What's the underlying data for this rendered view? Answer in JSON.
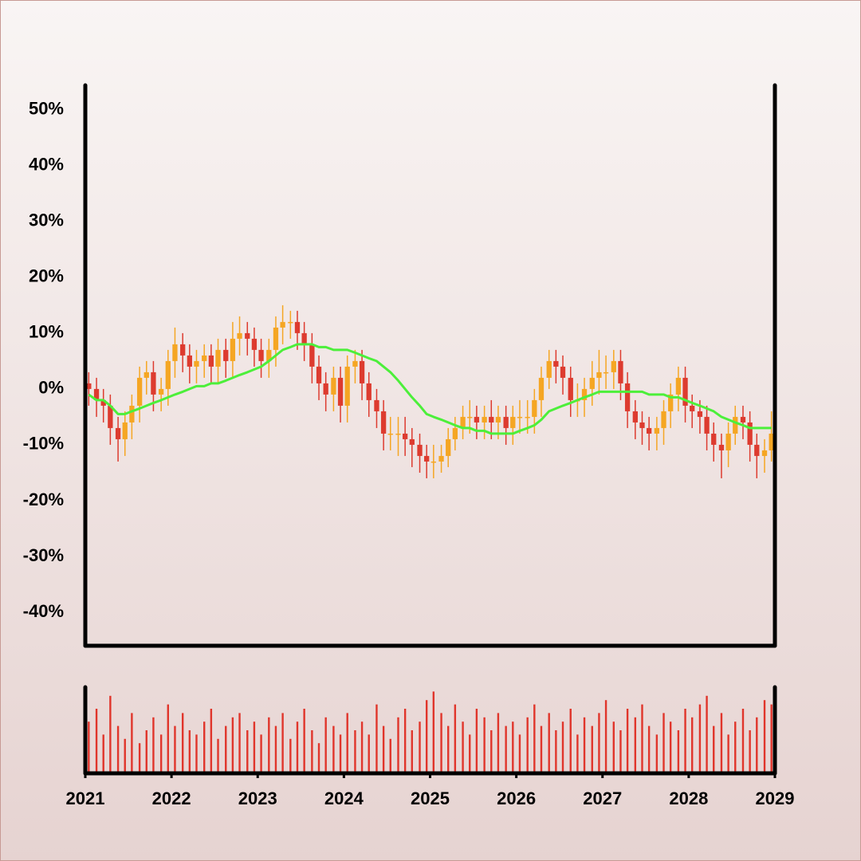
{
  "chart_data": {
    "type": "candlestick",
    "x": [
      2021.04,
      2021.13,
      2021.21,
      2021.29,
      2021.38,
      2021.46,
      2021.54,
      2021.63,
      2021.71,
      2021.79,
      2021.88,
      2021.96,
      2022.04,
      2022.13,
      2022.21,
      2022.29,
      2022.38,
      2022.46,
      2022.54,
      2022.63,
      2022.71,
      2022.79,
      2022.88,
      2022.96,
      2023.04,
      2023.13,
      2023.21,
      2023.29,
      2023.38,
      2023.46,
      2023.54,
      2023.63,
      2023.71,
      2023.79,
      2023.88,
      2023.96,
      2024.04,
      2024.13,
      2024.21,
      2024.29,
      2024.38,
      2024.46,
      2024.54,
      2024.63,
      2024.71,
      2024.79,
      2024.88,
      2024.96,
      2025.04,
      2025.13,
      2025.21,
      2025.29,
      2025.38,
      2025.46,
      2025.54,
      2025.63,
      2025.71,
      2025.79,
      2025.88,
      2025.96,
      2026.04,
      2026.13,
      2026.21,
      2026.29,
      2026.38,
      2026.46,
      2026.54,
      2026.63,
      2026.71,
      2026.79,
      2026.88,
      2026.96,
      2027.04,
      2027.13,
      2027.21,
      2027.29,
      2027.38,
      2027.46,
      2027.54,
      2027.63,
      2027.71,
      2027.79,
      2027.88,
      2027.96,
      2028.04,
      2028.13,
      2028.21,
      2028.29,
      2028.38,
      2028.46,
      2028.54,
      2028.63,
      2028.71,
      2028.79,
      2028.88,
      2028.96
    ],
    "open": [
      1,
      0,
      -2,
      -3,
      -7,
      -9,
      -6,
      -3,
      2,
      3,
      -1,
      0,
      5,
      8,
      6,
      4,
      5,
      6,
      4,
      7,
      5,
      9,
      10,
      9,
      7,
      5,
      7,
      11,
      12,
      12,
      10,
      8,
      4,
      1,
      -1,
      2,
      -3,
      4,
      5,
      1,
      -2,
      -4,
      -8,
      -8,
      -8,
      -9,
      -10,
      -12,
      -13,
      -13,
      -12,
      -9,
      -7,
      -5,
      -5,
      -6,
      -5,
      -6,
      -5,
      -7,
      -5,
      -5,
      -5,
      -2,
      2,
      5,
      4,
      2,
      -2,
      -2,
      0,
      2,
      3,
      3,
      5,
      1,
      -4,
      -6,
      -7,
      -8,
      -7,
      -4,
      -1,
      2,
      -3,
      -4,
      -5,
      -8,
      -10,
      -11,
      -8,
      -5,
      -6,
      -10,
      -12,
      -11
    ],
    "high": [
      3,
      2,
      0,
      -1,
      -5,
      -4,
      -1,
      4,
      5,
      5,
      2,
      7,
      11,
      10,
      8,
      7,
      8,
      8,
      9,
      9,
      12,
      13,
      12,
      11,
      9,
      9,
      13,
      15,
      14,
      14,
      12,
      10,
      6,
      3,
      4,
      4,
      6,
      7,
      7,
      3,
      0,
      -2,
      -5,
      -5,
      -5,
      -7,
      -8,
      -10,
      -10,
      -10,
      -7,
      -5,
      -3,
      -2,
      -3,
      -3,
      -2,
      -3,
      -3,
      -3,
      -2,
      -2,
      0,
      4,
      7,
      7,
      6,
      4,
      1,
      2,
      5,
      7,
      6,
      7,
      7,
      3,
      -2,
      -4,
      -5,
      -5,
      -2,
      1,
      4,
      4,
      -1,
      -2,
      -3,
      -6,
      -8,
      -6,
      -3,
      -3,
      -4,
      -8,
      -9,
      -4
    ],
    "low": [
      -3,
      -5,
      -6,
      -10,
      -13,
      -12,
      -9,
      -6,
      -1,
      -4,
      -4,
      -3,
      2,
      3,
      1,
      1,
      2,
      1,
      1,
      2,
      2,
      6,
      6,
      4,
      2,
      2,
      4,
      8,
      9,
      7,
      5,
      1,
      -2,
      -4,
      -4,
      -6,
      -6,
      1,
      -2,
      -5,
      -7,
      -11,
      -11,
      -12,
      -12,
      -14,
      -15,
      -16,
      -16,
      -15,
      -14,
      -11,
      -9,
      -8,
      -9,
      -9,
      -9,
      -9,
      -10,
      -10,
      -8,
      -8,
      -8,
      -5,
      0,
      1,
      -1,
      -5,
      -5,
      -5,
      -3,
      -1,
      0,
      0,
      -2,
      -7,
      -9,
      -10,
      -11,
      -11,
      -10,
      -7,
      -4,
      -6,
      -7,
      -8,
      -11,
      -13,
      -16,
      -14,
      -10,
      -9,
      -13,
      -16,
      -15,
      -13
    ],
    "close": [
      0,
      -2,
      -3,
      -7,
      -9,
      -6,
      -3,
      2,
      3,
      -1,
      0,
      5,
      8,
      6,
      4,
      5,
      6,
      4,
      7,
      5,
      9,
      10,
      9,
      7,
      5,
      7,
      11,
      12,
      12,
      10,
      8,
      4,
      1,
      -1,
      2,
      -3,
      4,
      5,
      1,
      -2,
      -4,
      -8,
      -8,
      -8,
      -9,
      -10,
      -12,
      -13,
      -13,
      -12,
      -9,
      -7,
      -5,
      -5,
      -6,
      -5,
      -6,
      -5,
      -7,
      -5,
      -5,
      -5,
      -2,
      2,
      5,
      4,
      2,
      -2,
      -2,
      0,
      2,
      3,
      3,
      5,
      1,
      -4,
      -6,
      -7,
      -8,
      -7,
      -4,
      -1,
      2,
      -3,
      -4,
      -5,
      -8,
      -10,
      -11,
      -8,
      -5,
      -6,
      -10,
      -12,
      -11,
      -8
    ],
    "up_color": "#f5a623",
    "down_color": "#dd3b2f",
    "ma": {
      "color": "#4cef3a",
      "values": [
        -1,
        -2,
        -2,
        -3,
        -4.5,
        -4.5,
        -4,
        -3.5,
        -3,
        -2.5,
        -2,
        -1.5,
        -1,
        -0.5,
        0,
        0.5,
        0.5,
        1,
        1,
        1.5,
        2,
        2.5,
        3,
        3.5,
        4,
        5,
        6,
        7,
        7.5,
        8,
        8,
        8,
        7.5,
        7.5,
        7,
        7,
        7,
        6.5,
        6,
        5.5,
        5,
        4,
        3,
        1.5,
        0,
        -1.5,
        -3,
        -4.5,
        -5,
        -5.5,
        -6,
        -6.5,
        -7,
        -7,
        -7.5,
        -7.5,
        -8,
        -8,
        -8,
        -8,
        -7.5,
        -7,
        -6.5,
        -5.5,
        -4,
        -3.5,
        -3,
        -2.5,
        -2,
        -1.5,
        -1,
        -0.5,
        -0.5,
        -0.5,
        -0.5,
        -0.5,
        -0.5,
        -0.5,
        -1,
        -1,
        -1,
        -1.5,
        -1.5,
        -2,
        -2.5,
        -3,
        -3.5,
        -4,
        -5,
        -5.5,
        -6,
        -6.5,
        -7,
        -7,
        -7,
        -7
      ]
    },
    "volume": {
      "color": "#e0352b",
      "lim": [
        0,
        100
      ],
      "values": [
        60,
        75,
        45,
        90,
        55,
        40,
        70,
        35,
        50,
        65,
        45,
        80,
        55,
        70,
        50,
        45,
        60,
        75,
        40,
        55,
        65,
        70,
        50,
        60,
        45,
        65,
        55,
        70,
        40,
        60,
        75,
        50,
        35,
        65,
        55,
        45,
        70,
        50,
        60,
        45,
        80,
        55,
        40,
        65,
        75,
        50,
        60,
        85,
        95,
        70,
        55,
        80,
        60,
        45,
        75,
        65,
        50,
        70,
        55,
        60,
        45,
        65,
        80,
        55,
        70,
        50,
        60,
        75,
        45,
        65,
        55,
        70,
        85,
        60,
        50,
        75,
        65,
        80,
        55,
        45,
        70,
        60,
        50,
        75,
        65,
        80,
        90,
        55,
        70,
        45,
        60,
        75,
        50,
        65,
        85,
        80
      ]
    },
    "xlim": [
      2021,
      2029
    ],
    "xticks": [
      2021,
      2022,
      2023,
      2024,
      2025,
      2026,
      2027,
      2028,
      2029
    ],
    "ylim": [
      -46,
      54.4
    ],
    "yticks": [
      {
        "value": 50,
        "label": "50%"
      },
      {
        "value": 40,
        "label": "40%"
      },
      {
        "value": 30,
        "label": "30%"
      },
      {
        "value": 20,
        "label": "20%"
      },
      {
        "value": 10,
        "label": "10%"
      },
      {
        "value": 0,
        "label": "0%"
      },
      {
        "value": -10,
        "label": "-10%"
      },
      {
        "value": -20,
        "label": "-20%"
      },
      {
        "value": -30,
        "label": "-30%"
      },
      {
        "value": -40,
        "label": "-40%"
      }
    ]
  }
}
